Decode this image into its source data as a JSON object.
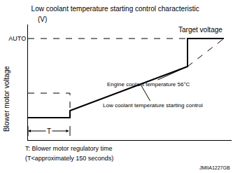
{
  "chart_data": {
    "type": "line",
    "title": "Low coolant temperature starting control characteristic",
    "ylabel": "Blower motor voltage",
    "yunit": "(V)",
    "xlim": [
      0,
      291
    ],
    "ylim": [
      20,
      185
    ],
    "yticks": [
      {
        "value": 165,
        "label": "AUTO"
      }
    ],
    "tick_labels": "y",
    "grid": false,
    "series": [
      {
        "color": "#000000",
        "line_style": "solid",
        "x": [
          0,
          60,
          60,
          228,
          228,
          280
        ],
        "values": [
          52,
          52,
          62,
          125,
          165,
          165
        ]
      },
      {
        "color": "#000000",
        "line_style": "dashed",
        "x": [
          228,
          280
        ],
        "values": [
          125,
          165
        ]
      },
      {
        "color": "#000000",
        "line_style": "dashed",
        "x": [
          0,
          228
        ],
        "values": [
          165,
          165
        ]
      },
      {
        "color": "#000000",
        "line_style": "dashed",
        "x": [
          0,
          60,
          60
        ],
        "values": [
          87,
          87,
          62
        ]
      }
    ],
    "annotations": [
      "Target voltage",
      "Engine coolant temperature 56°C",
      "Low coolant temperature starting control",
      "T",
      "T: Blower motor regulatory time",
      "(T<approximately 150 seconds)",
      "JMIIA1227GB"
    ]
  }
}
